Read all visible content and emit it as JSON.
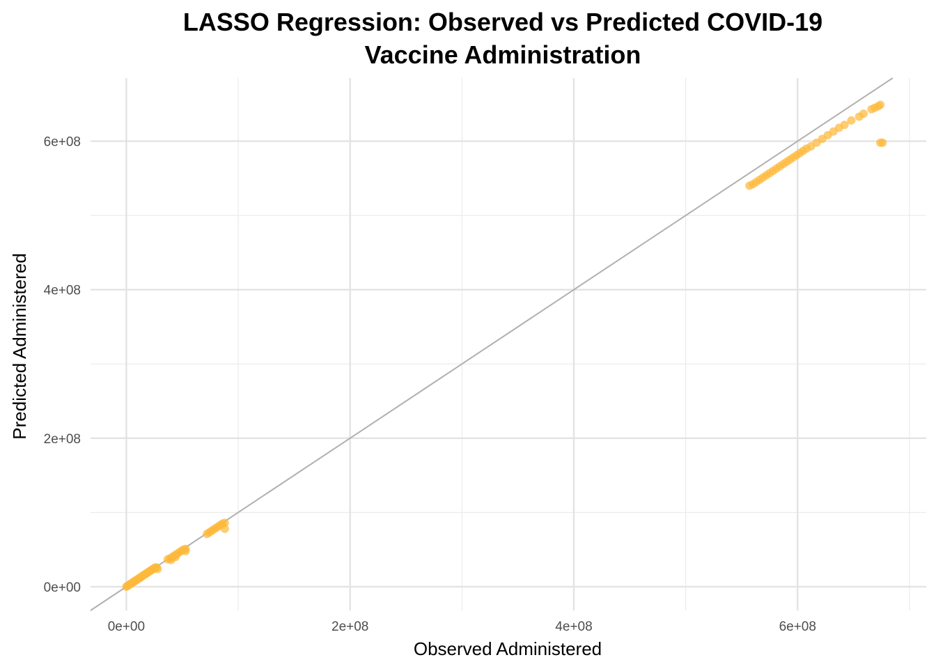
{
  "chart_data": {
    "type": "scatter",
    "title_lines": [
      "LASSO Regression: Observed vs Predicted COVID-19",
      "Vaccine Administration"
    ],
    "xlabel": "Observed Administered",
    "ylabel": "Predicted Administered",
    "x_ticks": [
      {
        "value": 0,
        "label": "0e+00"
      },
      {
        "value": 200000000,
        "label": "2e+08"
      },
      {
        "value": 400000000,
        "label": "4e+08"
      },
      {
        "value": 600000000,
        "label": "6e+08"
      }
    ],
    "y_ticks": [
      {
        "value": 0,
        "label": "0e+00"
      },
      {
        "value": 200000000,
        "label": "2e+08"
      },
      {
        "value": 400000000,
        "label": "4e+08"
      },
      {
        "value": 600000000,
        "label": "6e+08"
      }
    ],
    "x_minor_ticks": [
      100000000,
      300000000,
      500000000,
      700000000
    ],
    "y_minor_ticks": [
      100000000,
      300000000,
      500000000
    ],
    "xlim": [
      -32000000,
      715000000
    ],
    "ylim": [
      -32000000,
      685000000
    ],
    "grid": true,
    "reference_line": {
      "slope": 1,
      "intercept": 0,
      "color": "#b0b0b0"
    },
    "point_color": "#FDB83A",
    "series": [
      {
        "values": [
          [
            0,
            0
          ],
          [
            1000000,
            1000000
          ],
          [
            2000000,
            2000000
          ],
          [
            3000000,
            3000000
          ],
          [
            4000000,
            4000000
          ],
          [
            5000000,
            5000000
          ],
          [
            6000000,
            6000000
          ],
          [
            7000000,
            7000000
          ],
          [
            8000000,
            8000000
          ],
          [
            9000000,
            9000000
          ],
          [
            10000000,
            10000000
          ],
          [
            11000000,
            11000000
          ],
          [
            12000000,
            12000000
          ],
          [
            13000000,
            13000000
          ],
          [
            14000000,
            14000000
          ],
          [
            15000000,
            15000000
          ],
          [
            16000000,
            16000000
          ],
          [
            17000000,
            17000000
          ],
          [
            18000000,
            18000000
          ],
          [
            19000000,
            19000000
          ],
          [
            20000000,
            20000000
          ],
          [
            21000000,
            21000000
          ],
          [
            22000000,
            22000000
          ],
          [
            23000000,
            23000000
          ],
          [
            24000000,
            24000000
          ],
          [
            25000000,
            25000000
          ],
          [
            26000000,
            26000000
          ],
          [
            27000000,
            26000000
          ],
          [
            28000000,
            24000000
          ],
          [
            37000000,
            37000000
          ],
          [
            39000000,
            38000000
          ],
          [
            41000000,
            40000000
          ],
          [
            43000000,
            42000000
          ],
          [
            45000000,
            44000000
          ],
          [
            47000000,
            46000000
          ],
          [
            49000000,
            48000000
          ],
          [
            51000000,
            50000000
          ],
          [
            53000000,
            51000000
          ],
          [
            53000000,
            48000000
          ],
          [
            44000000,
            40000000
          ],
          [
            40000000,
            36000000
          ],
          [
            72000000,
            71000000
          ],
          [
            74000000,
            73000000
          ],
          [
            76000000,
            75000000
          ],
          [
            78000000,
            77000000
          ],
          [
            80000000,
            79000000
          ],
          [
            82000000,
            81000000
          ],
          [
            84000000,
            83000000
          ],
          [
            86000000,
            85000000
          ],
          [
            88000000,
            86000000
          ],
          [
            88000000,
            78000000
          ],
          [
            557000000,
            540000000
          ],
          [
            560000000,
            542000000
          ],
          [
            563000000,
            545000000
          ],
          [
            566000000,
            548000000
          ],
          [
            569000000,
            551000000
          ],
          [
            572000000,
            554000000
          ],
          [
            575000000,
            557000000
          ],
          [
            578000000,
            560000000
          ],
          [
            581000000,
            563000000
          ],
          [
            584000000,
            566000000
          ],
          [
            587000000,
            569000000
          ],
          [
            590000000,
            572000000
          ],
          [
            593000000,
            575000000
          ],
          [
            596000000,
            578000000
          ],
          [
            599000000,
            581000000
          ],
          [
            602000000,
            584000000
          ],
          [
            605000000,
            587000000
          ],
          [
            608000000,
            590000000
          ],
          [
            612000000,
            593000000
          ],
          [
            617000000,
            598000000
          ],
          [
            622000000,
            603000000
          ],
          [
            627000000,
            608000000
          ],
          [
            632000000,
            613000000
          ],
          [
            637000000,
            618000000
          ],
          [
            642000000,
            622000000
          ],
          [
            648000000,
            628000000
          ],
          [
            655000000,
            633000000
          ],
          [
            659000000,
            637000000
          ],
          [
            666000000,
            643000000
          ],
          [
            669000000,
            645000000
          ],
          [
            672000000,
            647000000
          ],
          [
            674000000,
            649000000
          ],
          [
            674000000,
            598000000
          ],
          [
            676000000,
            598000000
          ]
        ]
      }
    ]
  }
}
